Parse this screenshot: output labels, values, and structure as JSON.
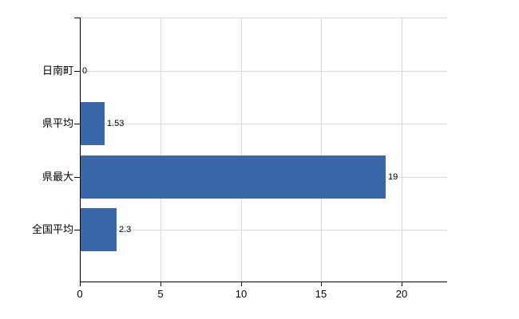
{
  "chart_data": {
    "type": "bar",
    "orientation": "horizontal",
    "title": "",
    "categories": [
      "日南町",
      "県平均",
      "県最大",
      "全国平均"
    ],
    "values": [
      0,
      1.53,
      19,
      2.3
    ],
    "x_ticks": [
      0,
      5,
      10,
      15,
      20
    ],
    "xlim": [
      0,
      22.8
    ],
    "grid": true,
    "legend": "none",
    "bar_color": "#3A67A8",
    "gridline_color": "#D9D9D9",
    "axis_color": "#000000",
    "text_color": "#000000",
    "background_color": "#FFFFFF"
  }
}
